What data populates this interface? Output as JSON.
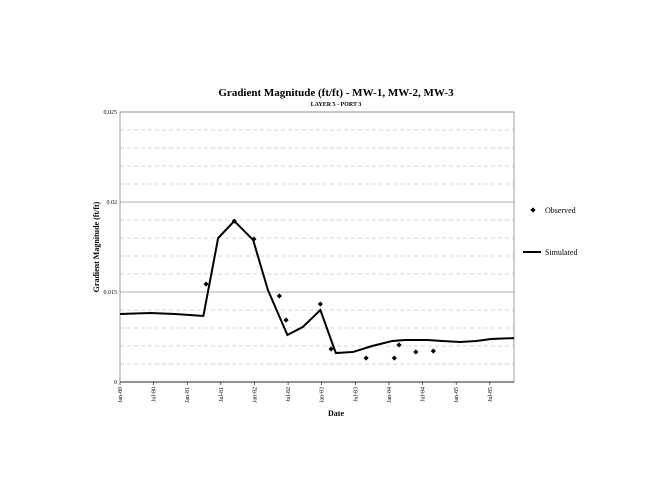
{
  "chart_data": {
    "type": "line",
    "title": "Gradient Magnitude (ft/ft) - MW-1, MW-2, MW-3",
    "subtitle": "LAYER 5 - PORT 3",
    "x_label": "Date",
    "y_label": "Gradient Magnitude (ft/ft)",
    "xlim": [
      1980,
      1985.86
    ],
    "xticks": [
      {
        "value": 1980,
        "label": "Jan-80"
      },
      {
        "value": 1980.5,
        "label": "Jul-80"
      },
      {
        "value": 1981,
        "label": "Jan-81"
      },
      {
        "value": 1981.5,
        "label": "Jul-81"
      },
      {
        "value": 1982,
        "label": "Jan-82"
      },
      {
        "value": 1982.5,
        "label": "Jul-82"
      },
      {
        "value": 1983,
        "label": "Jan-83"
      },
      {
        "value": 1983.5,
        "label": "Jul-83"
      },
      {
        "value": 1984,
        "label": "Jan-84"
      },
      {
        "value": 1984.5,
        "label": "Jul-84"
      },
      {
        "value": 1985,
        "label": "Jan-85"
      },
      {
        "value": 1985.5,
        "label": "Jul-85"
      }
    ],
    "ylim": [
      0.01,
      0.025
    ],
    "yticks": [
      {
        "value": 0.01,
        "label": "0"
      },
      0.015,
      0.02,
      0.025
    ],
    "y_minor_ticks": [
      0.011,
      0.012,
      0.013,
      0.014,
      0.016,
      0.017,
      0.018,
      0.019,
      0.021,
      0.022,
      0.023,
      0.024
    ],
    "grid": true,
    "legend": "right",
    "series": [
      {
        "name": "Observed",
        "color": "#000000",
        "style": "markers",
        "x": [
          1981.28,
          1981.7,
          1981.99,
          1982.37,
          1982.47,
          1982.98,
          1983.14,
          1983.66,
          1984.08,
          1984.15,
          1984.4,
          1984.66
        ],
        "values": [
          0.01544,
          0.01894,
          0.01794,
          0.01478,
          0.01344,
          0.01433,
          0.01183,
          0.01133,
          0.01133,
          0.01206,
          0.01167,
          0.01172
        ]
      },
      {
        "name": "Simulated",
        "color": "#000000",
        "style": "line",
        "x": [
          1980,
          1980.45,
          1980.82,
          1981.24,
          1981.46,
          1981.7,
          1981.98,
          1982.2,
          1982.49,
          1982.72,
          1982.98,
          1983.21,
          1983.47,
          1983.75,
          1984.05,
          1984.24,
          1984.58,
          1984.79,
          1985.06,
          1985.3,
          1985.52,
          1985.86
        ],
        "values": [
          0.01378,
          0.01383,
          0.01378,
          0.01367,
          0.018,
          0.01894,
          0.01789,
          0.01511,
          0.01261,
          0.01306,
          0.014,
          0.01161,
          0.01167,
          0.012,
          0.01228,
          0.01233,
          0.01233,
          0.01228,
          0.01222,
          0.01228,
          0.01239,
          0.01244
        ]
      }
    ]
  }
}
